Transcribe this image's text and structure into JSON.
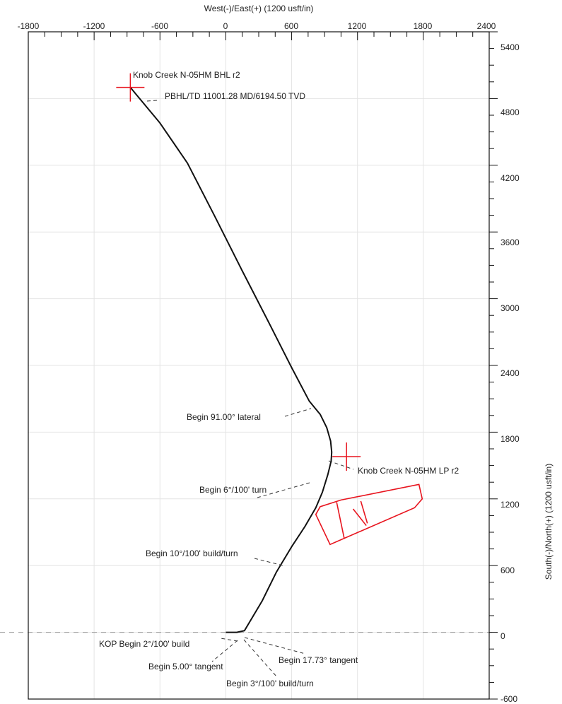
{
  "chart_data": {
    "type": "line",
    "title": "",
    "xlabel": "West(-)/East(+) (1200 usft/in)",
    "ylabel": "South(-)/North(+) (1200 usft/in)",
    "xlim": [
      -1800,
      2400
    ],
    "ylim": [
      -600,
      5400
    ],
    "x_ticks": [
      "-1800",
      "-1200",
      "-600",
      "0",
      "600",
      "1200",
      "1800",
      "2400"
    ],
    "y_ticks": [
      "-600",
      "0",
      "600",
      "1200",
      "1800",
      "2400",
      "3000",
      "3600",
      "4200",
      "4800",
      "5400"
    ],
    "grid": true,
    "zero_line": true,
    "colors": {
      "wellpath": "#111111",
      "target": "#e8141e",
      "grid": "#e4e4e4"
    },
    "wellpath": {
      "x": [
        0,
        100,
        170,
        330,
        460,
        600,
        720,
        820,
        880,
        930,
        960,
        965,
        955,
        920,
        860,
        760,
        600,
        400,
        150,
        -100,
        -350,
        -600,
        -870
      ],
      "y": [
        0,
        0,
        15,
        280,
        540,
        770,
        950,
        1120,
        1260,
        1420,
        1540,
        1620,
        1720,
        1840,
        1960,
        2080,
        2380,
        2770,
        3250,
        3740,
        4220,
        4580,
        4900
      ]
    },
    "targets": [
      {
        "name": "Knob Creek N-05HM BHL r2",
        "x": -870,
        "y": 4900
      },
      {
        "name": "Knob Creek N-05HM LP r2",
        "x": 1100,
        "y": 1580
      }
    ],
    "lease_polygon": {
      "x": [
        820,
        950,
        1720,
        1790,
        1760,
        1050,
        860
      ],
      "y": [
        1060,
        790,
        1120,
        1200,
        1330,
        1190,
        1130
      ]
    },
    "lease_lines": [
      {
        "x": [
          1010,
          1080
        ],
        "y": [
          1170,
          840
        ]
      },
      {
        "x": [
          1160,
          1280
        ],
        "y": [
          1110,
          960
        ]
      },
      {
        "x": [
          1230,
          1290
        ],
        "y": [
          1180,
          980
        ]
      }
    ],
    "annotations": [
      {
        "text": "Knob Creek N-05HM BHL r2"
      },
      {
        "text": "PBHL/TD 11001.28 MD/6194.50 TVD"
      },
      {
        "text": "Knob Creek N-05HM LP r2"
      },
      {
        "text": "Begin 91.00° lateral"
      },
      {
        "text": "Begin 6°/100' turn"
      },
      {
        "text": "Begin 10°/100' build/turn"
      },
      {
        "text": "KOP Begin 2°/100' build"
      },
      {
        "text": "Begin 5.00° tangent"
      },
      {
        "text": "Begin 17.73° tangent"
      },
      {
        "text": "Begin 3°/100' build/turn"
      }
    ]
  }
}
